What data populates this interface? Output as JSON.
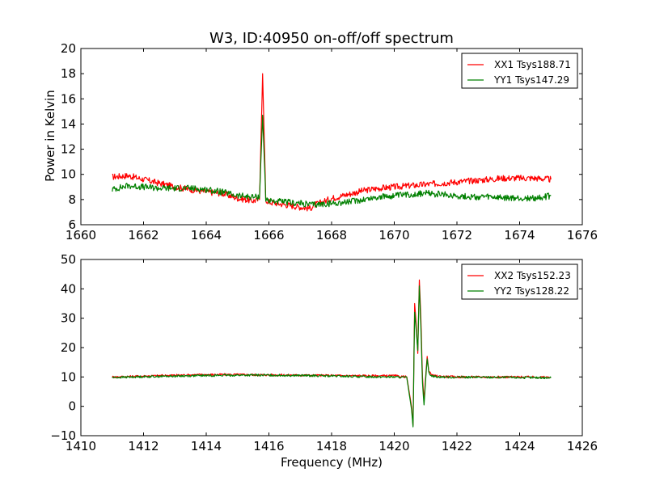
{
  "title": "W3, ID:40950 on-off/off spectrum",
  "colors": {
    "red": "#ff0000",
    "green": "#008000"
  },
  "chart_data": [
    {
      "type": "line",
      "xlabel": "",
      "ylabel": "Power in Kelvin",
      "xlim": [
        1660,
        1676
      ],
      "ylim": [
        6,
        20
      ],
      "xticks": [
        1660,
        1662,
        1664,
        1666,
        1668,
        1670,
        1672,
        1674,
        1676
      ],
      "yticks": [
        6,
        8,
        10,
        12,
        14,
        16,
        18,
        20
      ],
      "legend_position": "top-right",
      "grid": false,
      "series": [
        {
          "name": "XX1 Tsys188.71",
          "color": "#ff0000",
          "x": [
            1661.0,
            1661.5,
            1662.0,
            1662.5,
            1663.0,
            1663.5,
            1664.0,
            1664.5,
            1665.0,
            1665.5,
            1665.7,
            1665.8,
            1665.9,
            1666.0,
            1666.5,
            1667.0,
            1667.3,
            1667.5,
            1668.0,
            1668.5,
            1669.0,
            1669.5,
            1670.0,
            1670.5,
            1671.0,
            1671.5,
            1672.0,
            1672.5,
            1673.0,
            1673.5,
            1674.0,
            1674.5,
            1675.0
          ],
          "y": [
            9.8,
            9.9,
            9.6,
            9.3,
            9.0,
            8.8,
            8.6,
            8.5,
            8.1,
            7.9,
            8.0,
            18.0,
            8.0,
            7.8,
            7.6,
            7.4,
            7.3,
            7.6,
            8.1,
            8.4,
            8.7,
            8.9,
            9.0,
            9.1,
            9.2,
            9.3,
            9.4,
            9.5,
            9.6,
            9.7,
            9.7,
            9.7,
            9.6
          ]
        },
        {
          "name": "YY1 Tsys147.29",
          "color": "#008000",
          "x": [
            1661.0,
            1661.5,
            1662.0,
            1662.5,
            1663.0,
            1663.5,
            1664.0,
            1664.5,
            1665.0,
            1665.5,
            1665.7,
            1665.8,
            1665.9,
            1666.0,
            1666.5,
            1667.0,
            1667.3,
            1667.5,
            1668.0,
            1668.5,
            1669.0,
            1669.5,
            1670.0,
            1670.5,
            1671.0,
            1671.5,
            1672.0,
            1672.5,
            1673.0,
            1673.5,
            1674.0,
            1674.5,
            1675.0
          ],
          "y": [
            8.8,
            9.1,
            9.0,
            8.9,
            8.9,
            8.9,
            8.8,
            8.6,
            8.3,
            8.2,
            8.2,
            14.7,
            8.1,
            7.9,
            7.8,
            7.7,
            7.6,
            7.6,
            7.7,
            7.8,
            8.0,
            8.2,
            8.3,
            8.4,
            8.5,
            8.4,
            8.3,
            8.2,
            8.2,
            8.1,
            8.1,
            8.1,
            8.3
          ]
        }
      ]
    },
    {
      "type": "line",
      "xlabel": "Frequency (MHz)",
      "ylabel": "",
      "xlim": [
        1410,
        1426
      ],
      "ylim": [
        -10,
        50
      ],
      "xticks": [
        1410,
        1412,
        1414,
        1416,
        1418,
        1420,
        1422,
        1424,
        1426
      ],
      "yticks": [
        -10,
        0,
        10,
        20,
        30,
        40,
        50
      ],
      "legend_position": "top-right",
      "grid": false,
      "series": [
        {
          "name": "XX2 Tsys152.23",
          "color": "#ff0000",
          "x": [
            1411.0,
            1412.0,
            1413.0,
            1414.0,
            1415.0,
            1416.0,
            1417.0,
            1418.0,
            1419.0,
            1420.0,
            1420.4,
            1420.55,
            1420.6,
            1420.65,
            1420.7,
            1420.75,
            1420.8,
            1420.85,
            1420.9,
            1420.95,
            1421.0,
            1421.05,
            1421.1,
            1421.2,
            1421.5,
            1422.0,
            1423.0,
            1424.0,
            1425.0
          ],
          "y": [
            10.0,
            10.3,
            10.6,
            10.8,
            10.8,
            10.7,
            10.6,
            10.5,
            10.4,
            10.4,
            10.0,
            0.0,
            -6.5,
            35.0,
            28.0,
            18.0,
            43.0,
            30.0,
            10.0,
            2.0,
            10.0,
            17.0,
            12.0,
            10.5,
            10.2,
            10.0,
            10.0,
            10.0,
            9.9
          ]
        },
        {
          "name": "YY2 Tsys128.22",
          "color": "#008000",
          "x": [
            1411.0,
            1412.0,
            1413.0,
            1414.0,
            1415.0,
            1416.0,
            1417.0,
            1418.0,
            1419.0,
            1420.0,
            1420.4,
            1420.55,
            1420.6,
            1420.65,
            1420.7,
            1420.75,
            1420.8,
            1420.85,
            1420.9,
            1420.95,
            1421.0,
            1421.05,
            1421.1,
            1421.2,
            1421.5,
            1422.0,
            1423.0,
            1424.0,
            1425.0
          ],
          "y": [
            9.8,
            10.1,
            10.3,
            10.5,
            10.6,
            10.6,
            10.5,
            10.3,
            10.1,
            10.0,
            9.8,
            -1.0,
            -7.0,
            32.0,
            26.0,
            19.0,
            41.0,
            27.0,
            8.0,
            0.5,
            9.0,
            16.0,
            11.5,
            10.3,
            10.0,
            9.9,
            9.9,
            9.8,
            9.7
          ]
        }
      ]
    }
  ]
}
